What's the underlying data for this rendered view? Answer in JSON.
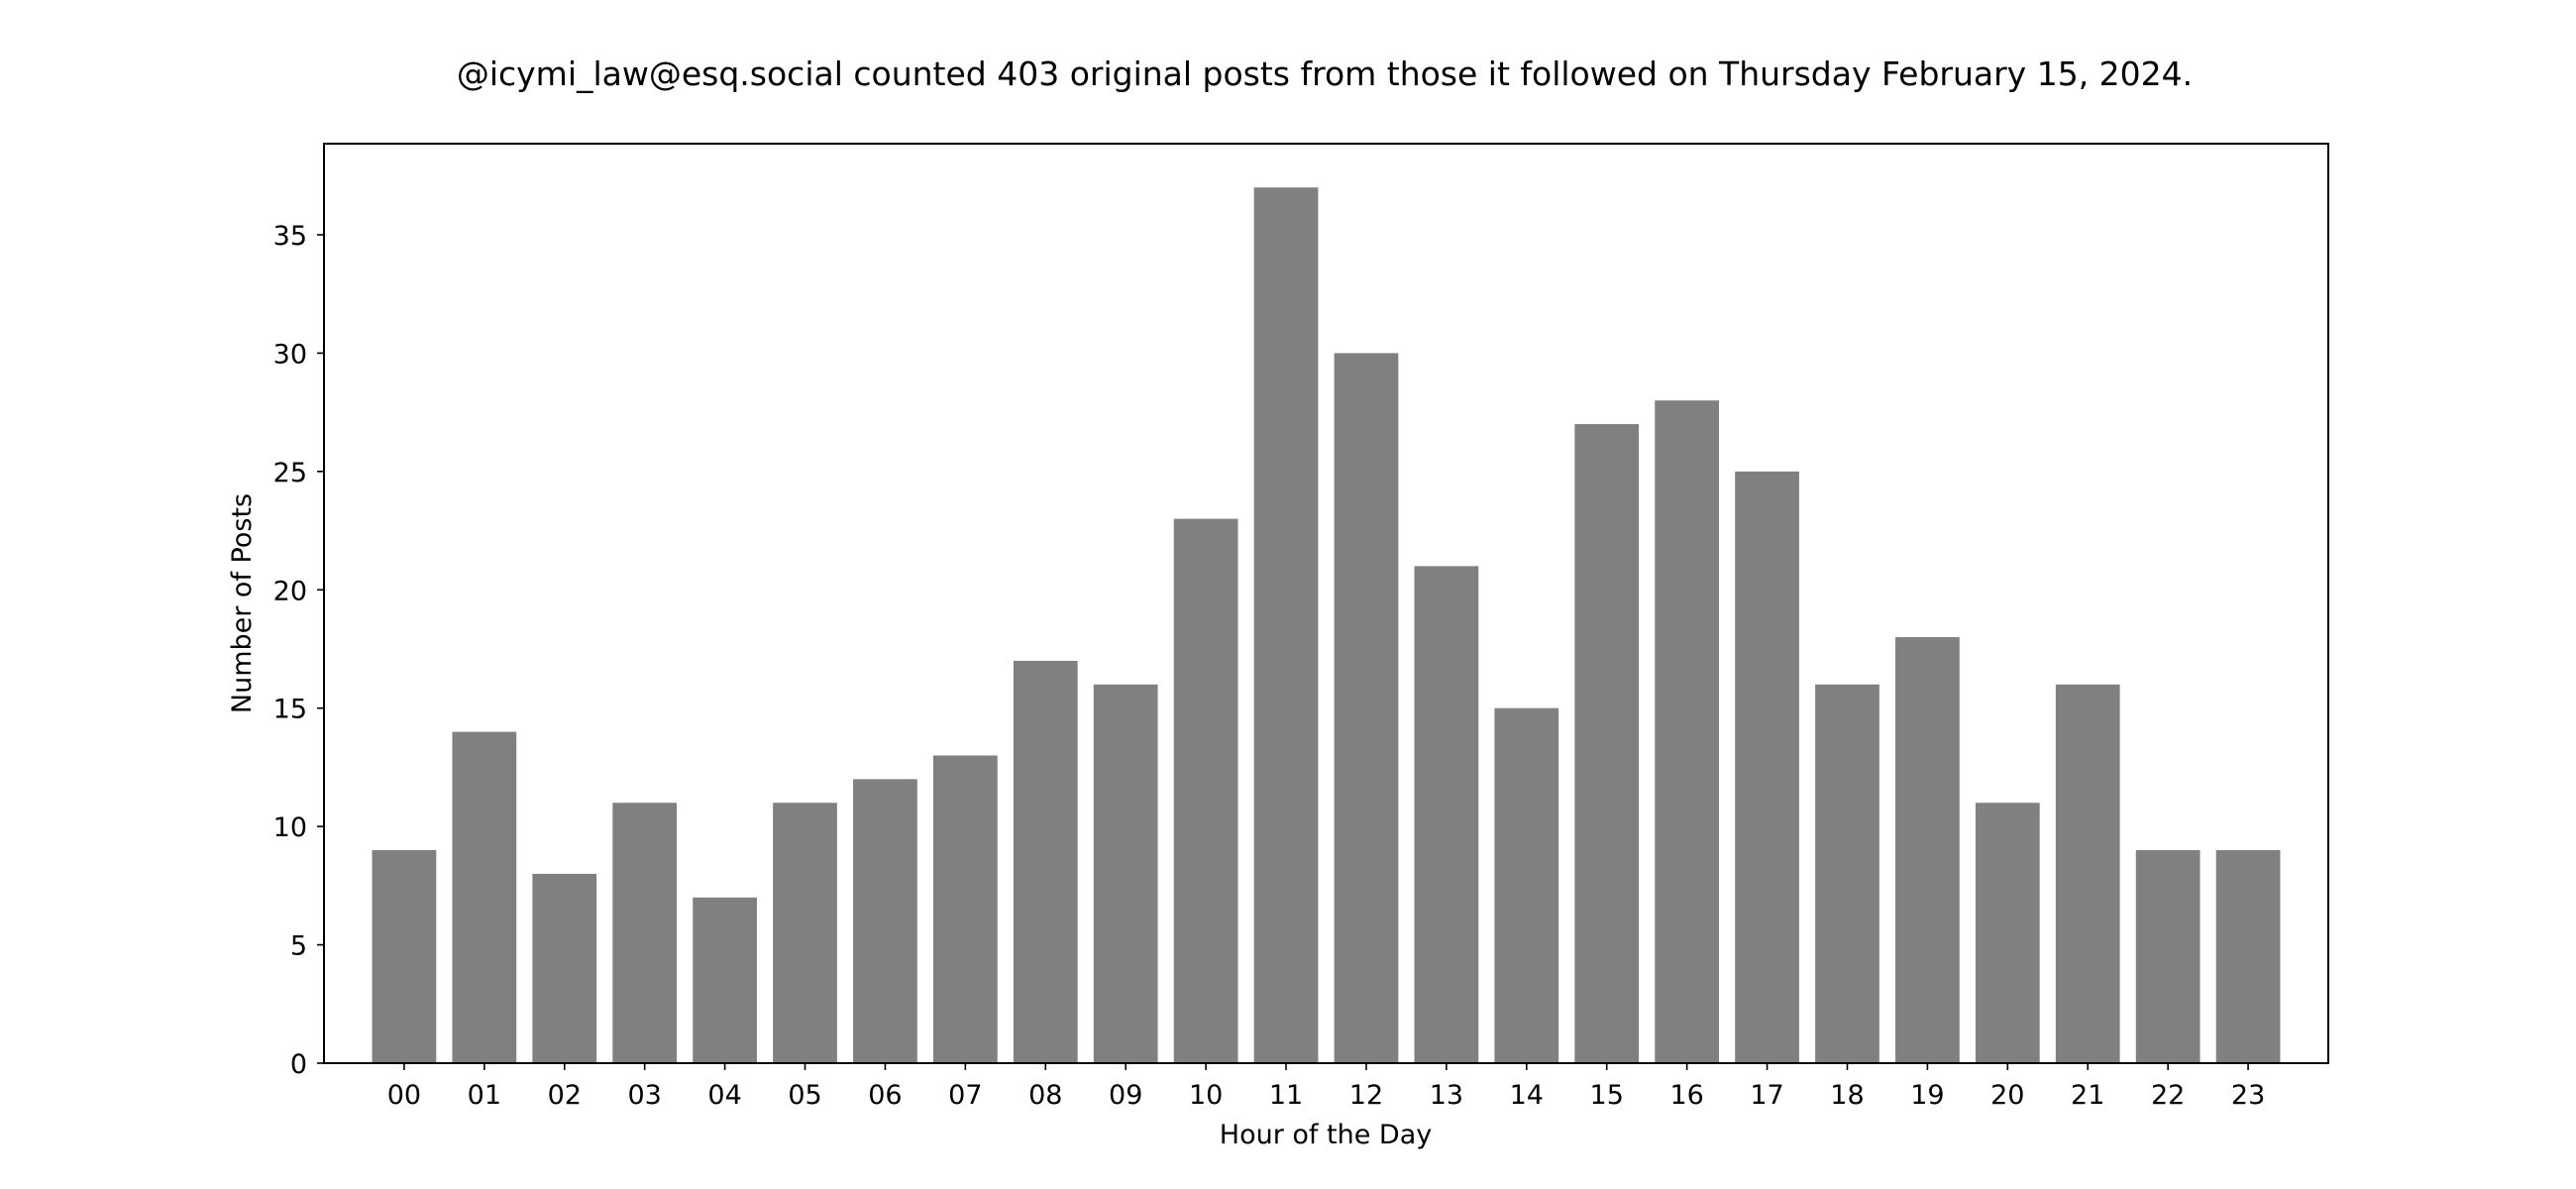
{
  "chart_data": {
    "type": "bar",
    "title": "@icymi_law@esq.social counted 403 original posts from those it followed on Thursday February 15, 2024.",
    "xlabel": "Hour of the Day",
    "ylabel": "Number of Posts",
    "categories": [
      "00",
      "01",
      "02",
      "03",
      "04",
      "05",
      "06",
      "07",
      "08",
      "09",
      "10",
      "11",
      "12",
      "13",
      "14",
      "15",
      "16",
      "17",
      "18",
      "19",
      "20",
      "21",
      "22",
      "23"
    ],
    "values": [
      9,
      14,
      8,
      11,
      7,
      11,
      12,
      13,
      17,
      16,
      23,
      37,
      30,
      21,
      15,
      27,
      28,
      25,
      16,
      18,
      11,
      16,
      9,
      9
    ],
    "ylim": [
      0,
      38.85
    ],
    "yticks": [
      0,
      5,
      10,
      15,
      20,
      25,
      30,
      35
    ],
    "grid": false,
    "bar_color": "#808080"
  }
}
